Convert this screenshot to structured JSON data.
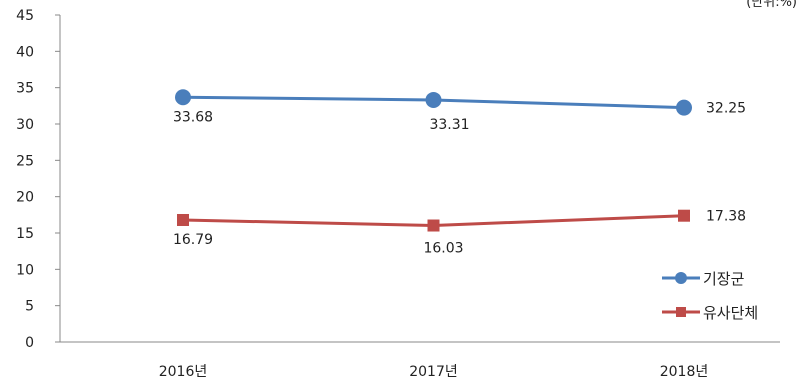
{
  "chart_data": {
    "type": "line",
    "title": "",
    "unit_note": "(단위:%)",
    "categories": [
      "2016년",
      "2017년",
      "2018년"
    ],
    "y_ticks": [
      "0",
      "5",
      "10",
      "15",
      "20",
      "25",
      "30",
      "35",
      "40",
      "45"
    ],
    "ylim": [
      0,
      45
    ],
    "grid": false,
    "legend_position": "right",
    "series": [
      {
        "name": "기장군",
        "values": [
          33.68,
          33.31,
          32.25
        ],
        "labels": [
          "33.68",
          "33.31",
          "32.25"
        ],
        "color": "#4a7ebb",
        "marker": "circle"
      },
      {
        "name": "유사단체",
        "values": [
          16.79,
          16.03,
          17.38
        ],
        "labels": [
          "16.79",
          "16.03",
          "17.38"
        ],
        "color": "#be4b48",
        "marker": "square"
      }
    ]
  }
}
